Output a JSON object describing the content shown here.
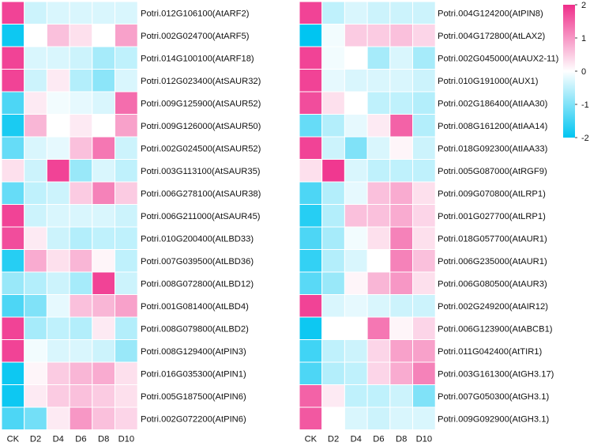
{
  "chart_data": [
    {
      "type": "heatmap",
      "columns": [
        "CK",
        "D2",
        "D4",
        "D6",
        "D8",
        "D10"
      ],
      "rows": [
        {
          "label": "Potri.012G106100(AtARF2)",
          "values": [
            1.8,
            -0.4,
            -0.3,
            -0.3,
            -0.3,
            -0.3
          ]
        },
        {
          "label": "Potri.002G024700(AtARF5)",
          "values": [
            -1.9,
            0.0,
            0.6,
            0.3,
            0.0,
            0.9
          ]
        },
        {
          "label": "Potri.014G100100(AtARF18)",
          "values": [
            1.8,
            -0.3,
            -0.3,
            -0.4,
            -0.7,
            -0.5
          ]
        },
        {
          "label": "Potri.012G023400(AtSAUR32)",
          "values": [
            1.8,
            -0.4,
            0.2,
            -0.6,
            -0.9,
            -0.3
          ]
        },
        {
          "label": "Potri.009G125900(AtSAUR52)",
          "values": [
            -1.4,
            0.2,
            -0.1,
            -0.2,
            -0.3,
            1.4
          ]
        },
        {
          "label": "Potri.009G126000(AtSAUR50)",
          "values": [
            -1.8,
            0.7,
            0.0,
            0.2,
            0.0,
            0.9
          ]
        },
        {
          "label": "Potri.002G024500(AtSAUR52)",
          "values": [
            -1.2,
            -0.3,
            -0.2,
            0.6,
            1.3,
            -0.4
          ]
        },
        {
          "label": "Potri.003G113100(AtSAUR35)",
          "values": [
            0.3,
            -0.4,
            1.8,
            -0.8,
            -0.3,
            -0.5
          ]
        },
        {
          "label": "Potri.006G278100(AtSAUR38)",
          "values": [
            -1.2,
            -0.5,
            -0.4,
            0.5,
            1.2,
            0.5
          ]
        },
        {
          "label": "Potri.006G211000(AtSAUR45)",
          "values": [
            1.8,
            -0.4,
            -0.3,
            -0.3,
            -0.3,
            -0.4
          ]
        },
        {
          "label": "Potri.010G200400(AtLBD33)",
          "values": [
            1.7,
            0.2,
            -0.4,
            -0.6,
            -0.5,
            -0.5
          ]
        },
        {
          "label": "Potri.007G039500(AtLBD36)",
          "values": [
            -1.7,
            0.8,
            0.3,
            0.7,
            0.1,
            -0.5
          ]
        },
        {
          "label": "Potri.008G072800(AtLBD12)",
          "values": [
            -0.8,
            -0.6,
            -0.4,
            -0.7,
            1.8,
            -0.4
          ]
        },
        {
          "label": "Potri.001G081400(AtLBD4)",
          "values": [
            -1.4,
            -1.0,
            -0.2,
            0.6,
            0.7,
            0.9
          ]
        },
        {
          "label": "Potri.008G079800(AtLBD2)",
          "values": [
            1.8,
            -0.7,
            -0.5,
            -0.6,
            0.2,
            -0.6
          ]
        },
        {
          "label": "Potri.008G129400(AtPIN3)",
          "values": [
            1.8,
            -0.1,
            -0.3,
            -0.3,
            -0.4,
            -0.8
          ]
        },
        {
          "label": "Potri.016G035300(AtPIN1)",
          "values": [
            -1.9,
            0.1,
            0.5,
            0.7,
            0.8,
            0.3
          ]
        },
        {
          "label": "Potri.005G187500(AtPIN6)",
          "values": [
            -1.9,
            0.2,
            0.5,
            0.6,
            0.5,
            0.3
          ]
        },
        {
          "label": "Potri.002G072200(AtPIN6)",
          "values": [
            -1.4,
            -1.1,
            0.2,
            1.0,
            0.6,
            0.4
          ]
        }
      ]
    },
    {
      "type": "heatmap",
      "columns": [
        "CK",
        "D2",
        "D4",
        "D6",
        "D8",
        "D10"
      ],
      "rows": [
        {
          "label": "Potri.004G124200(AtPIN8)",
          "values": [
            1.8,
            -0.5,
            -0.3,
            -0.4,
            -0.4,
            -0.4
          ]
        },
        {
          "label": "Potri.004G172800(AtLAX2)",
          "values": [
            -2.0,
            -0.1,
            0.5,
            0.5,
            0.6,
            0.4
          ]
        },
        {
          "label": "Potri.002G045000(AtAUX2-11)",
          "values": [
            1.8,
            -0.1,
            0.0,
            -0.7,
            -0.3,
            -0.7
          ]
        },
        {
          "label": "Potri.010G191000(AUX1)",
          "values": [
            1.8,
            -0.2,
            -0.3,
            -0.3,
            -0.3,
            -0.4
          ]
        },
        {
          "label": "Potri.002G186400(AtIAA30)",
          "values": [
            1.7,
            0.3,
            0.0,
            -0.5,
            -0.5,
            -0.6
          ]
        },
        {
          "label": "Potri.008G161200(AtIAA14)",
          "values": [
            -1.2,
            -0.6,
            -0.2,
            0.2,
            1.5,
            -0.6
          ]
        },
        {
          "label": "Potri.018G092300(AtIAA33)",
          "values": [
            1.8,
            -0.4,
            -1.0,
            -0.3,
            0.1,
            -0.4
          ]
        },
        {
          "label": "Potri.005G087000(AtRGF9)",
          "values": [
            0.3,
            1.9,
            -0.3,
            -0.5,
            -0.5,
            -0.5
          ]
        },
        {
          "label": "Potri.009G070800(AtLRP1)",
          "values": [
            -1.4,
            -0.6,
            -0.2,
            0.6,
            0.8,
            0.3
          ]
        },
        {
          "label": "Potri.001G027700(AtLRP1)",
          "values": [
            -1.7,
            -0.6,
            0.6,
            0.6,
            0.8,
            0.4
          ]
        },
        {
          "label": "Potri.018G057700(AtAUR1)",
          "values": [
            -1.4,
            -0.7,
            -0.1,
            0.3,
            1.2,
            0.3
          ]
        },
        {
          "label": "Potri.006G235000(AtAUR1)",
          "values": [
            -1.6,
            -0.6,
            -0.3,
            0.0,
            1.2,
            0.6
          ]
        },
        {
          "label": "Potri.006G080500(AtAUR3)",
          "values": [
            -1.3,
            -0.8,
            0.1,
            0.7,
            1.0,
            0.3
          ]
        },
        {
          "label": "Potri.002G249200(AtAIR12)",
          "values": [
            1.8,
            -0.3,
            -0.2,
            -0.3,
            -0.4,
            -0.4
          ]
        },
        {
          "label": "Potri.006G123900(AtABCB1)",
          "values": [
            -1.9,
            0.0,
            0.0,
            1.3,
            0.1,
            0.4
          ]
        },
        {
          "label": "Potri.011G042400(AtTIR1)",
          "values": [
            -1.5,
            -0.5,
            -0.4,
            0.4,
            0.9,
            0.9
          ]
        },
        {
          "label": "Potri.003G161300(AtGH3.17)",
          "values": [
            -1.4,
            -0.6,
            -0.5,
            0.4,
            0.8,
            1.2
          ]
        },
        {
          "label": "Potri.007G050300(AtGH3.1)",
          "values": [
            1.5,
            0.2,
            -0.5,
            -0.5,
            -0.4,
            -1.0
          ]
        },
        {
          "label": "Potri.009G092900(AtGH3.1)",
          "values": [
            1.6,
            0.0,
            -0.3,
            -0.4,
            -0.3,
            -0.3
          ]
        }
      ]
    }
  ],
  "legend": {
    "min": -2,
    "max": 2,
    "ticks": [
      "2",
      "1",
      "0",
      "-1",
      "-2"
    ],
    "colors": {
      "low": "#00c5f1",
      "mid": "#ffffff",
      "high": "#ef2e8a"
    }
  }
}
